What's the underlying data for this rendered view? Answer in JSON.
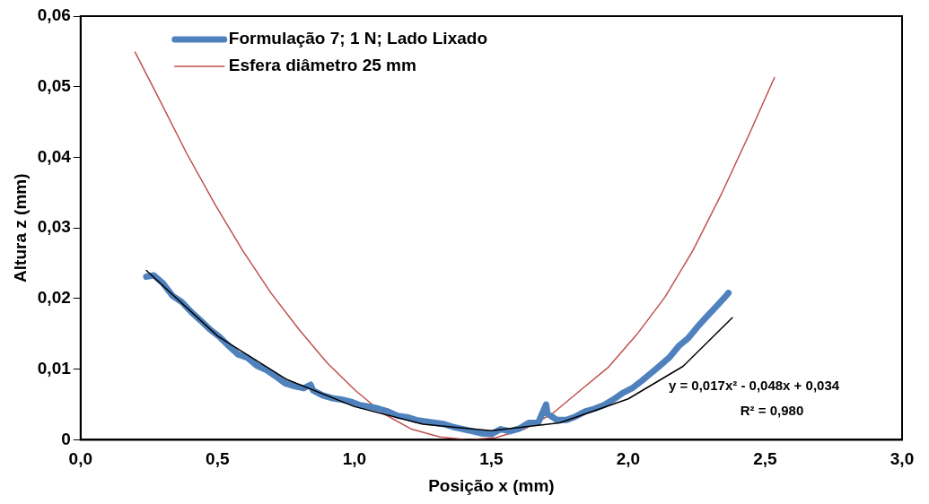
{
  "chart_data": {
    "type": "line",
    "xlabel": "Posição x (mm)",
    "ylabel": "Altura z (mm)",
    "xlim": [
      0,
      3
    ],
    "xticks": [
      {
        "value": 0,
        "label": "0,0"
      },
      {
        "value": 0.5,
        "label": "0,5"
      },
      {
        "value": 1,
        "label": "1,0"
      },
      {
        "value": 1.5,
        "label": "1,5"
      },
      {
        "value": 2,
        "label": "2,0"
      },
      {
        "value": 2.5,
        "label": "2,5"
      },
      {
        "value": 3,
        "label": "3,0"
      }
    ],
    "ylim": [
      0,
      0.06
    ],
    "yticks": [
      0,
      {
        "value": 0.01,
        "label": "0,01"
      },
      {
        "value": 0.02,
        "label": "0,02"
      },
      {
        "value": 0.03,
        "label": "0,03"
      },
      {
        "value": 0.04,
        "label": "0,04"
      },
      {
        "value": 0.05,
        "label": "0,05"
      },
      {
        "value": 0.06,
        "label": "0,06"
      }
    ],
    "grid": false,
    "legend": "top left",
    "marker": "none",
    "line_style": "solid",
    "annotations": [
      "y = 0,017x² - 0,048x + 0,034",
      "R² = 0,980"
    ],
    "series": [
      {
        "name": "Formulação 7; 1 N; Lado Lixado",
        "color": "#4f81bd",
        "x": [
          0.24,
          0.267,
          0.3,
          0.336,
          0.37,
          0.404,
          0.438,
          0.473,
          0.507,
          0.541,
          0.575,
          0.61,
          0.644,
          0.678,
          0.712,
          0.747,
          0.781,
          0.815,
          0.84,
          0.849,
          0.884,
          0.918,
          0.952,
          0.986,
          1.02,
          1.055,
          1.089,
          1.123,
          1.158,
          1.192,
          1.226,
          1.26,
          1.295,
          1.329,
          1.363,
          1.397,
          1.432,
          1.466,
          1.5,
          1.534,
          1.568,
          1.603,
          1.637,
          1.671,
          1.7,
          1.705,
          1.74,
          1.774,
          1.808,
          1.842,
          1.877,
          1.911,
          1.945,
          1.979,
          2.014,
          2.048,
          2.082,
          2.116,
          2.151,
          2.185,
          2.219,
          2.253,
          2.288,
          2.322,
          2.346,
          2.366
        ],
        "values": [
          0.0231,
          0.0233,
          0.0222,
          0.0204,
          0.0195,
          0.0181,
          0.0169,
          0.0156,
          0.0146,
          0.0133,
          0.0121,
          0.0116,
          0.0105,
          0.0099,
          0.009,
          0.008,
          0.0076,
          0.0073,
          0.0078,
          0.007,
          0.0063,
          0.0059,
          0.0057,
          0.0054,
          0.0049,
          0.0047,
          0.0044,
          0.004,
          0.0034,
          0.0032,
          0.0028,
          0.0026,
          0.0024,
          0.0022,
          0.0018,
          0.0015,
          0.0012,
          0.0009,
          0.0008,
          0.0015,
          0.0012,
          0.0016,
          0.0024,
          0.0024,
          0.005,
          0.0037,
          0.0028,
          0.0028,
          0.0033,
          0.004,
          0.0044,
          0.0049,
          0.0057,
          0.0066,
          0.0073,
          0.0083,
          0.0094,
          0.0105,
          0.0117,
          0.0133,
          0.0144,
          0.016,
          0.0175,
          0.0189,
          0.0199,
          0.0208
        ]
      },
      {
        "name": "Esfera diâmetro 25 mm",
        "color": "#c0504d",
        "x": [
          0.199,
          0.284,
          0.387,
          0.49,
          0.592,
          0.695,
          0.798,
          0.9,
          1.003,
          1.106,
          1.209,
          1.312,
          1.414,
          1.517,
          1.62,
          1.723,
          1.825,
          1.928,
          2.031,
          2.134,
          2.236,
          2.339,
          2.442,
          2.534
        ],
        "values": [
          0.0549,
          0.0485,
          0.0406,
          0.0334,
          0.0268,
          0.0208,
          0.0156,
          0.0109,
          0.007,
          0.0037,
          0.0015,
          0.0004,
          0,
          0.0003,
          0.0015,
          0.0037,
          0.007,
          0.0103,
          0.0149,
          0.0202,
          0.0268,
          0.0347,
          0.0433,
          0.0513
        ]
      },
      {
        "color": "#000000",
        "x": [
          0.24,
          0.5,
          0.75,
          1.0,
          1.25,
          1.5,
          1.75,
          2.0,
          2.2,
          2.38
        ],
        "values": [
          0.024,
          0.0147,
          0.0086,
          0.0047,
          0.0022,
          0.0013,
          0.0024,
          0.0058,
          0.0104,
          0.0173
        ]
      }
    ]
  }
}
